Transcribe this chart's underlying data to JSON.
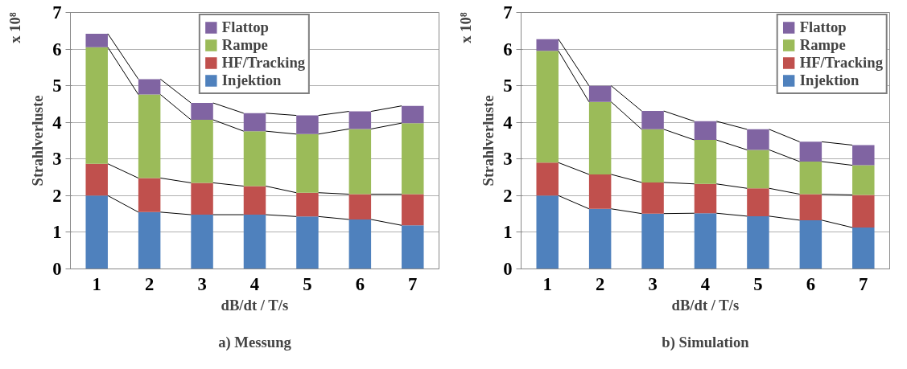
{
  "chart_data": [
    {
      "type": "bar",
      "title": "a) Messung",
      "xlabel": "dB/dt / T/s",
      "ylabel": "Strahlverluste",
      "annotations": [
        "x 10⁸"
      ],
      "categories": [
        "1",
        "2",
        "3",
        "4",
        "5",
        "6",
        "7"
      ],
      "stacked": true,
      "series": [
        {
          "name": "Injektion",
          "color": "#4f81bd",
          "values": [
            2.0,
            1.55,
            1.48,
            1.48,
            1.43,
            1.35,
            1.19
          ]
        },
        {
          "name": "HF/Tracking",
          "color": "#c0504d",
          "values": [
            0.87,
            0.93,
            0.87,
            0.78,
            0.65,
            0.69,
            0.85
          ]
        },
        {
          "name": "Rampe",
          "color": "#9bbb59",
          "values": [
            3.18,
            2.28,
            1.72,
            1.5,
            1.6,
            1.78,
            1.94
          ]
        },
        {
          "name": "Flattop",
          "color": "#8064a2",
          "values": [
            0.37,
            0.42,
            0.46,
            0.49,
            0.51,
            0.48,
            0.47
          ]
        }
      ],
      "ylim": [
        0,
        7
      ],
      "yticks": [
        0,
        1,
        2,
        3,
        4,
        5,
        6,
        7
      ],
      "grid": "y",
      "legend": "top"
    },
    {
      "type": "bar",
      "title": "b) Simulation",
      "xlabel": "dB/dt / T/s",
      "ylabel": "Strahlverluste",
      "annotations": [
        "x 10⁸"
      ],
      "categories": [
        "1",
        "2",
        "3",
        "4",
        "5",
        "6",
        "7"
      ],
      "stacked": true,
      "series": [
        {
          "name": "Injektion",
          "color": "#4f81bd",
          "values": [
            2.0,
            1.64,
            1.51,
            1.52,
            1.44,
            1.33,
            1.13
          ]
        },
        {
          "name": "HF/Tracking",
          "color": "#c0504d",
          "values": [
            0.9,
            0.94,
            0.85,
            0.8,
            0.76,
            0.71,
            0.89
          ]
        },
        {
          "name": "Rampe",
          "color": "#9bbb59",
          "values": [
            3.05,
            1.98,
            1.45,
            1.2,
            1.05,
            0.89,
            0.81
          ]
        },
        {
          "name": "Flattop",
          "color": "#8064a2",
          "values": [
            0.32,
            0.44,
            0.5,
            0.51,
            0.56,
            0.54,
            0.55
          ]
        }
      ],
      "ylim": [
        0,
        7
      ],
      "yticks": [
        0,
        1,
        2,
        3,
        4,
        5,
        6,
        7
      ],
      "grid": "y",
      "legend": "top right"
    }
  ]
}
